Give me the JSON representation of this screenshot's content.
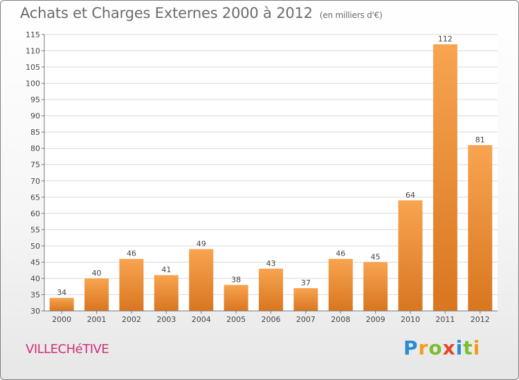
{
  "header": {
    "title": "Achats et Charges Externes 2000 à 2012",
    "subtitle": "(en milliers d'€)"
  },
  "footer": {
    "town": "VILLECHéTIVE",
    "brand_letters": [
      {
        "char": "P",
        "color": "#2a8bd4"
      },
      {
        "char": "r",
        "color": "#f39b1a"
      },
      {
        "char": "o",
        "color": "#7bbf2e"
      },
      {
        "char": "x",
        "color": "#e8452c"
      },
      {
        "char": "i",
        "color": "#2a8bd4"
      },
      {
        "char": "t",
        "color": "#7bbf2e"
      },
      {
        "char": "i",
        "color": "#f39b1a"
      }
    ]
  },
  "chart_data": {
    "type": "bar",
    "title": "Achats et Charges Externes 2000 à 2012",
    "subtitle": "(en milliers d'€)",
    "categories": [
      "2000",
      "2001",
      "2002",
      "2003",
      "2004",
      "2005",
      "2006",
      "2007",
      "2008",
      "2009",
      "2010",
      "2011",
      "2012"
    ],
    "values": [
      34,
      40,
      46,
      41,
      49,
      38,
      43,
      37,
      46,
      45,
      64,
      112,
      81
    ],
    "ylim": [
      30,
      115
    ],
    "yticks": [
      30,
      35,
      40,
      45,
      50,
      55,
      60,
      65,
      70,
      75,
      80,
      85,
      90,
      95,
      100,
      105,
      110,
      115
    ],
    "grid": true,
    "bar_color_top": "#f8a450",
    "bar_color_bottom": "#d97620",
    "xlabel": "",
    "ylabel": ""
  }
}
